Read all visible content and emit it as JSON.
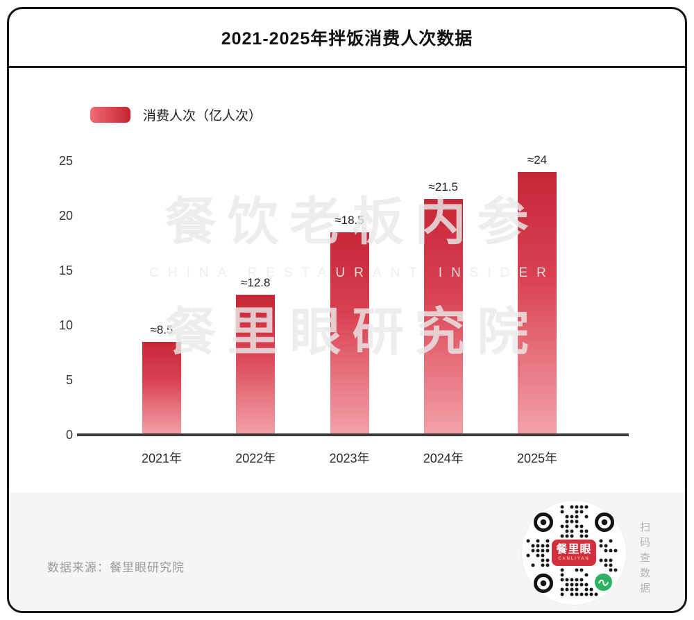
{
  "header": {
    "title": "2021-2025年拌饭消费人次数据"
  },
  "legend": {
    "label": "消费人次（亿人次）"
  },
  "chart_data": {
    "type": "bar",
    "title": "2021-2025年拌饭消费人次数据",
    "categories": [
      "2021年",
      "2022年",
      "2023年",
      "2024年",
      "2025年"
    ],
    "values": [
      8.5,
      12.8,
      18.5,
      21.5,
      24
    ],
    "value_labels": [
      "≈8.5",
      "≈12.8",
      "≈18.5",
      "≈21.5",
      "≈24"
    ],
    "series_name": "消费人次（亿人次）",
    "ylabel": "消费人次（亿人次）",
    "xlabel": "",
    "ylim": [
      0,
      25
    ],
    "yticks": [
      0,
      5,
      10,
      15,
      20,
      25
    ],
    "grid": false,
    "legend_position": "top-left",
    "bar_color_top": "#c62737",
    "bar_color_bottom": "#f3a2a9"
  },
  "watermark": {
    "line1": "餐饮老板内参",
    "line2": "CHINA RESTAURANT INSIDER",
    "line3": "餐里眼研究院"
  },
  "footer": {
    "source": "数据来源：餐里眼研究院",
    "qr_label": "餐里眼",
    "qr_sublabel": "CANLIYAN",
    "side_text": "扫码查数据"
  },
  "colors": {
    "accent": "#d2303e",
    "qr_green": "#2bb363",
    "baseline": "#3a3a3a"
  }
}
